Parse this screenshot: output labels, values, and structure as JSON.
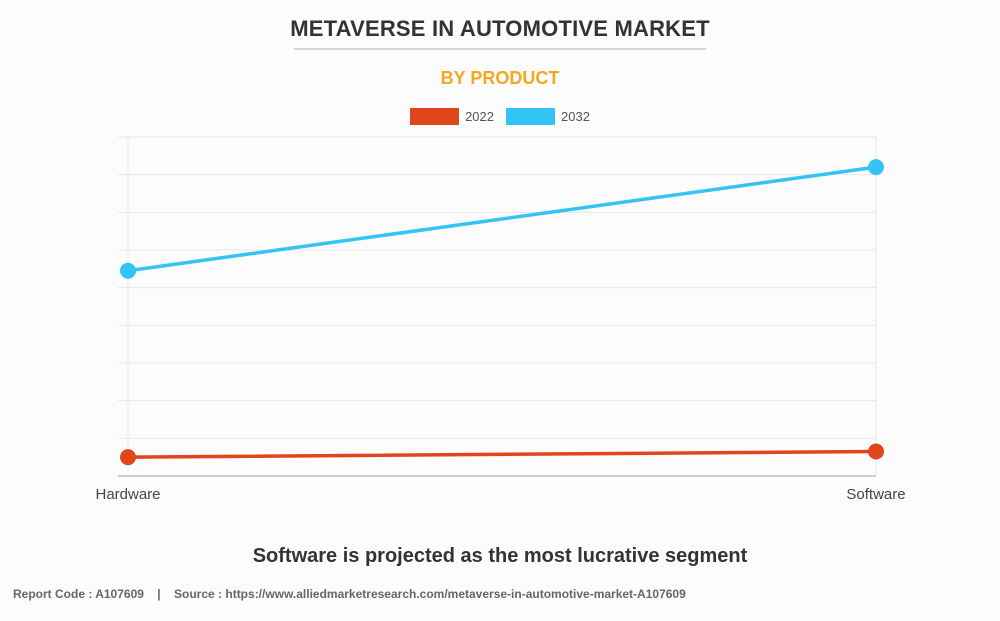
{
  "header": {
    "title": "METAVERSE IN AUTOMOTIVE MARKET",
    "subtitle": "BY PRODUCT"
  },
  "colors": {
    "series_2022": "#e0461b",
    "series_2032": "#33c3f5",
    "subtitle": "#f5a623"
  },
  "chart_data": {
    "type": "line",
    "title": "METAVERSE IN AUTOMOTIVE MARKET",
    "subtitle": "BY PRODUCT",
    "categories": [
      "Hardware",
      "Software"
    ],
    "series": [
      {
        "name": "2022",
        "values": [
          0.5,
          0.65
        ]
      },
      {
        "name": "2032",
        "values": [
          5.45,
          8.2
        ]
      }
    ],
    "ylim": [
      0,
      9
    ],
    "grid": true,
    "legend": "top-center",
    "xlabel": "",
    "ylabel": ""
  },
  "tagline": "Software is projected as the most lucrative segment",
  "footer": {
    "report_code": "Report Code : A107609",
    "separator": "|",
    "source": "Source : https://www.alliedmarketresearch.com/metaverse-in-automotive-market-A107609"
  }
}
